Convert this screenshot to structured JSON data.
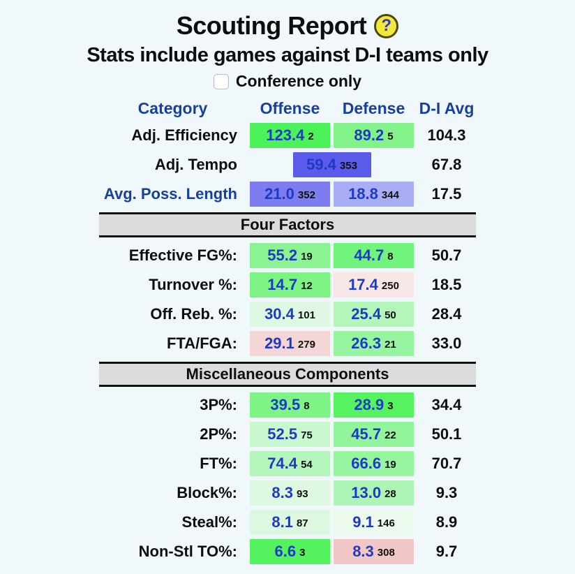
{
  "page": {
    "title": "Scouting Report",
    "help_icon_glyph": "?",
    "subtitle": "Stats include games against D-I teams only",
    "conference_label": "Conference only",
    "conference_checked": false
  },
  "colors": {
    "page_bg": "#f0f8fb",
    "header_blue": "#17409a",
    "value_blue": "#1d3ac6",
    "section_bar_bg": "#dcdcdc",
    "help_icon_yellow": "#f4e838"
  },
  "table": {
    "headers": {
      "category": "Category",
      "offense": "Offense",
      "defense": "Defense",
      "avg": "D-I Avg"
    },
    "rows": [
      {
        "label": "Adj. Efficiency",
        "offense": {
          "value": "123.4",
          "rank": "2",
          "bg": "#4df159"
        },
        "defense": {
          "value": "89.2",
          "rank": "5",
          "bg": "#82f289"
        },
        "avg": "104.3"
      },
      {
        "label": "Adj. Tempo",
        "combined": {
          "value": "59.4",
          "rank": "353",
          "bg": "#5a5aeb"
        },
        "avg": "67.8"
      },
      {
        "label": "Avg. Poss. Length",
        "offense": {
          "value": "21.0",
          "rank": "352",
          "bg": "#7d7def"
        },
        "defense": {
          "value": "18.8",
          "rank": "344",
          "bg": "#a9adf3"
        },
        "avg": "17.5"
      },
      {
        "section": "Four Factors"
      },
      {
        "label": "Effective FG%:",
        "offense": {
          "value": "55.2",
          "rank": "19",
          "bg": "#8cf393"
        },
        "defense": {
          "value": "44.7",
          "rank": "8",
          "bg": "#72f37b"
        },
        "avg": "50.7"
      },
      {
        "label": "Turnover %:",
        "offense": {
          "value": "14.7",
          "rank": "12",
          "bg": "#7df386"
        },
        "defense": {
          "value": "17.4",
          "rank": "250",
          "bg": "#f6e6e6"
        },
        "avg": "18.5"
      },
      {
        "label": "Off. Reb. %:",
        "offense": {
          "value": "30.4",
          "rank": "101",
          "bg": "#dff8e3"
        },
        "defense": {
          "value": "25.4",
          "rank": "50",
          "bg": "#b2f6ba"
        },
        "avg": "28.4"
      },
      {
        "label": "FTA/FGA:",
        "offense": {
          "value": "29.1",
          "rank": "279",
          "bg": "#f4d6d6"
        },
        "defense": {
          "value": "26.3",
          "rank": "21",
          "bg": "#97f49f"
        },
        "avg": "33.0"
      },
      {
        "section": "Miscellaneous Components"
      },
      {
        "label": "3P%:",
        "offense": {
          "value": "39.5",
          "rank": "8",
          "bg": "#7ef386"
        },
        "defense": {
          "value": "28.9",
          "rank": "3",
          "bg": "#57f25f"
        },
        "avg": "34.4"
      },
      {
        "label": "2P%:",
        "offense": {
          "value": "52.5",
          "rank": "75",
          "bg": "#c9f8cf"
        },
        "defense": {
          "value": "45.7",
          "rank": "22",
          "bg": "#92f49b"
        },
        "avg": "50.1"
      },
      {
        "label": "FT%:",
        "offense": {
          "value": "74.4",
          "rank": "54",
          "bg": "#b5f6bd"
        },
        "defense": {
          "value": "66.6",
          "rank": "19",
          "bg": "#97f49f"
        },
        "avg": "70.7"
      },
      {
        "label": "Block%:",
        "offense": {
          "value": "8.3",
          "rank": "93",
          "bg": "#def8e2"
        },
        "defense": {
          "value": "13.0",
          "rank": "28",
          "bg": "#adf5b5"
        },
        "avg": "9.3"
      },
      {
        "label": "Steal%:",
        "offense": {
          "value": "8.1",
          "rank": "87",
          "bg": "#dcf8e0"
        },
        "defense": {
          "value": "9.1",
          "rank": "146",
          "bg": "#ecfaee"
        },
        "avg": "8.9"
      },
      {
        "label": "Non-Stl TO%:",
        "offense": {
          "value": "6.6",
          "rank": "3",
          "bg": "#54f25e"
        },
        "defense": {
          "value": "8.3",
          "rank": "308",
          "bg": "#f1c7c7"
        },
        "avg": "9.7"
      }
    ]
  }
}
